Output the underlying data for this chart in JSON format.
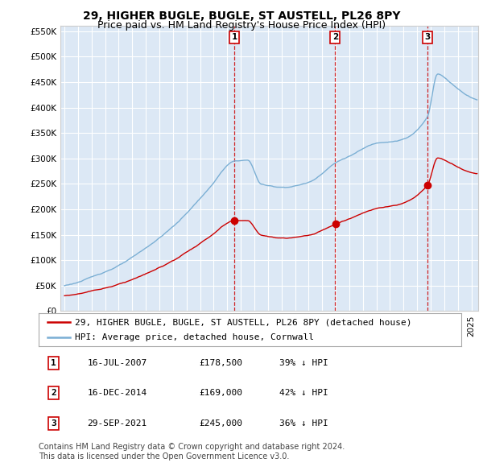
{
  "title": "29, HIGHER BUGLE, BUGLE, ST AUSTELL, PL26 8PY",
  "subtitle": "Price paid vs. HM Land Registry's House Price Index (HPI)",
  "ylim": [
    0,
    560000
  ],
  "yticks": [
    0,
    50000,
    100000,
    150000,
    200000,
    250000,
    300000,
    350000,
    400000,
    450000,
    500000,
    550000
  ],
  "xlim_start": 1994.7,
  "xlim_end": 2025.5,
  "background_color": "#ffffff",
  "plot_bg_color": "#dce8f5",
  "grid_color": "#ffffff",
  "hpi_color": "#7bafd4",
  "price_color": "#cc0000",
  "vline_color": "#cc0000",
  "transaction_dates": [
    2007.54,
    2014.96,
    2021.75
  ],
  "transaction_labels": [
    "1",
    "2",
    "3"
  ],
  "sale_prices": [
    178500,
    169000,
    245000
  ],
  "legend_entries": [
    "29, HIGHER BUGLE, BUGLE, ST AUSTELL, PL26 8PY (detached house)",
    "HPI: Average price, detached house, Cornwall"
  ],
  "table_rows": [
    [
      "1",
      "16-JUL-2007",
      "£178,500",
      "39% ↓ HPI"
    ],
    [
      "2",
      "16-DEC-2014",
      "£169,000",
      "42% ↓ HPI"
    ],
    [
      "3",
      "29-SEP-2021",
      "£245,000",
      "36% ↓ HPI"
    ]
  ],
  "footnote": "Contains HM Land Registry data © Crown copyright and database right 2024.\nThis data is licensed under the Open Government Licence v3.0.",
  "title_fontsize": 10,
  "subtitle_fontsize": 9,
  "tick_fontsize": 7.5,
  "legend_fontsize": 8,
  "table_fontsize": 8,
  "footnote_fontsize": 7
}
